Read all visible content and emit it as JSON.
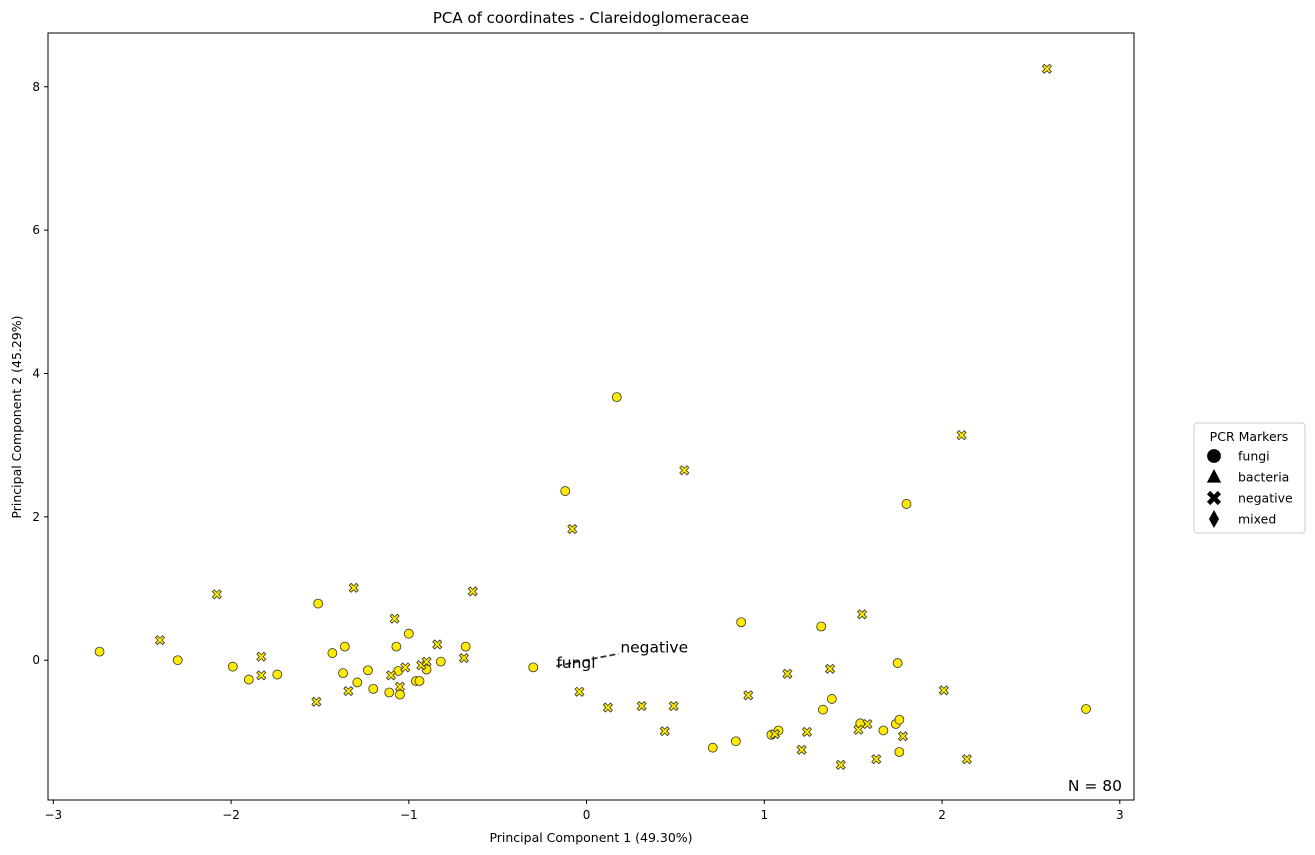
{
  "chart_data": {
    "type": "scatter",
    "title": "PCA of coordinates - Clareidoglomeraceae",
    "xlabel": "Principal Component 1 (49.30%)",
    "ylabel": "Principal Component 2 (45.29%)",
    "xlim": [
      -3.03,
      3.08
    ],
    "ylim": [
      -1.95,
      8.75
    ],
    "xticks": [
      -3,
      -2,
      -1,
      0,
      1,
      2,
      3
    ],
    "xtick_labels": [
      "−3",
      "−2",
      "−1",
      "0",
      "1",
      "2",
      "3"
    ],
    "yticks": [
      0,
      2,
      4,
      6,
      8
    ],
    "ytick_labels": [
      "0",
      "2",
      "4",
      "6",
      "8"
    ],
    "grid": false,
    "point_color": "#ffea00",
    "edge_color": "#333333",
    "count_label": "N = 80",
    "legend": {
      "title": "PCR Markers",
      "placement": "center-right outside",
      "entries": [
        {
          "label": "fungi",
          "marker": "circle"
        },
        {
          "label": "bacteria",
          "marker": "triangle"
        },
        {
          "label": "negative",
          "marker": "x"
        },
        {
          "label": "mixed",
          "marker": "diamond"
        }
      ]
    },
    "annotations": [
      {
        "text": "fungi",
        "x": -0.17,
        "y": -0.04
      },
      {
        "text": "negative",
        "x": 0.19,
        "y": 0.18
      }
    ],
    "annotation_line": {
      "x1": -0.17,
      "y1": -0.08,
      "x2": 0.18,
      "y2": 0.09
    },
    "series": [
      {
        "name": "fungi",
        "marker": "circle",
        "points": [
          [
            -2.74,
            0.12
          ],
          [
            -2.3,
            0.0
          ],
          [
            -1.99,
            -0.09
          ],
          [
            -1.9,
            -0.27
          ],
          [
            -1.74,
            -0.2
          ],
          [
            -1.51,
            0.79
          ],
          [
            -1.43,
            0.1
          ],
          [
            -1.37,
            -0.18
          ],
          [
            -1.36,
            0.19
          ],
          [
            -1.29,
            -0.31
          ],
          [
            -1.23,
            -0.14
          ],
          [
            -1.2,
            -0.4
          ],
          [
            -1.11,
            -0.45
          ],
          [
            -1.07,
            0.19
          ],
          [
            -1.06,
            -0.15
          ],
          [
            -1.05,
            -0.48
          ],
          [
            -1.0,
            0.37
          ],
          [
            -0.96,
            -0.29
          ],
          [
            -0.94,
            -0.29
          ],
          [
            -0.9,
            -0.13
          ],
          [
            -0.82,
            -0.02
          ],
          [
            -0.68,
            0.19
          ],
          [
            -0.3,
            -0.1
          ],
          [
            -0.12,
            2.36
          ],
          [
            0.17,
            3.67
          ],
          [
            0.71,
            -1.22
          ],
          [
            0.84,
            -1.13
          ],
          [
            0.87,
            0.53
          ],
          [
            1.04,
            -1.04
          ],
          [
            1.08,
            -0.98
          ],
          [
            1.32,
            0.47
          ],
          [
            1.33,
            -0.69
          ],
          [
            1.38,
            -0.54
          ],
          [
            1.54,
            -0.88
          ],
          [
            1.67,
            -0.98
          ],
          [
            1.74,
            -0.89
          ],
          [
            1.75,
            -0.04
          ],
          [
            1.76,
            -0.83
          ],
          [
            1.76,
            -1.28
          ],
          [
            1.8,
            2.18
          ],
          [
            2.81,
            -0.68
          ]
        ]
      },
      {
        "name": "negative",
        "marker": "x",
        "points": [
          [
            -2.4,
            0.28
          ],
          [
            -2.08,
            0.92
          ],
          [
            -1.83,
            0.05
          ],
          [
            -1.83,
            -0.21
          ],
          [
            -1.52,
            -0.58
          ],
          [
            -1.34,
            -0.43
          ],
          [
            -1.31,
            1.01
          ],
          [
            -1.1,
            -0.21
          ],
          [
            -1.08,
            0.58
          ],
          [
            -1.05,
            -0.37
          ],
          [
            -1.02,
            -0.1
          ],
          [
            -0.93,
            -0.07
          ],
          [
            -0.9,
            -0.02
          ],
          [
            -0.84,
            0.22
          ],
          [
            -0.69,
            0.03
          ],
          [
            -0.64,
            0.96
          ],
          [
            -0.08,
            1.83
          ],
          [
            -0.04,
            -0.44
          ],
          [
            0.12,
            -0.66
          ],
          [
            0.31,
            -0.64
          ],
          [
            0.44,
            -0.99
          ],
          [
            0.49,
            -0.64
          ],
          [
            0.55,
            2.65
          ],
          [
            0.91,
            -0.49
          ],
          [
            1.06,
            -1.03
          ],
          [
            1.13,
            -0.19
          ],
          [
            1.21,
            -1.25
          ],
          [
            1.24,
            -1.0
          ],
          [
            1.37,
            -0.12
          ],
          [
            1.43,
            -1.46
          ],
          [
            1.53,
            -0.97
          ],
          [
            1.55,
            0.64
          ],
          [
            1.58,
            -0.89
          ],
          [
            1.63,
            -1.38
          ],
          [
            1.78,
            -1.06
          ],
          [
            2.01,
            -0.42
          ],
          [
            2.11,
            3.14
          ],
          [
            2.14,
            -1.38
          ],
          [
            2.59,
            8.25
          ]
        ]
      }
    ]
  }
}
